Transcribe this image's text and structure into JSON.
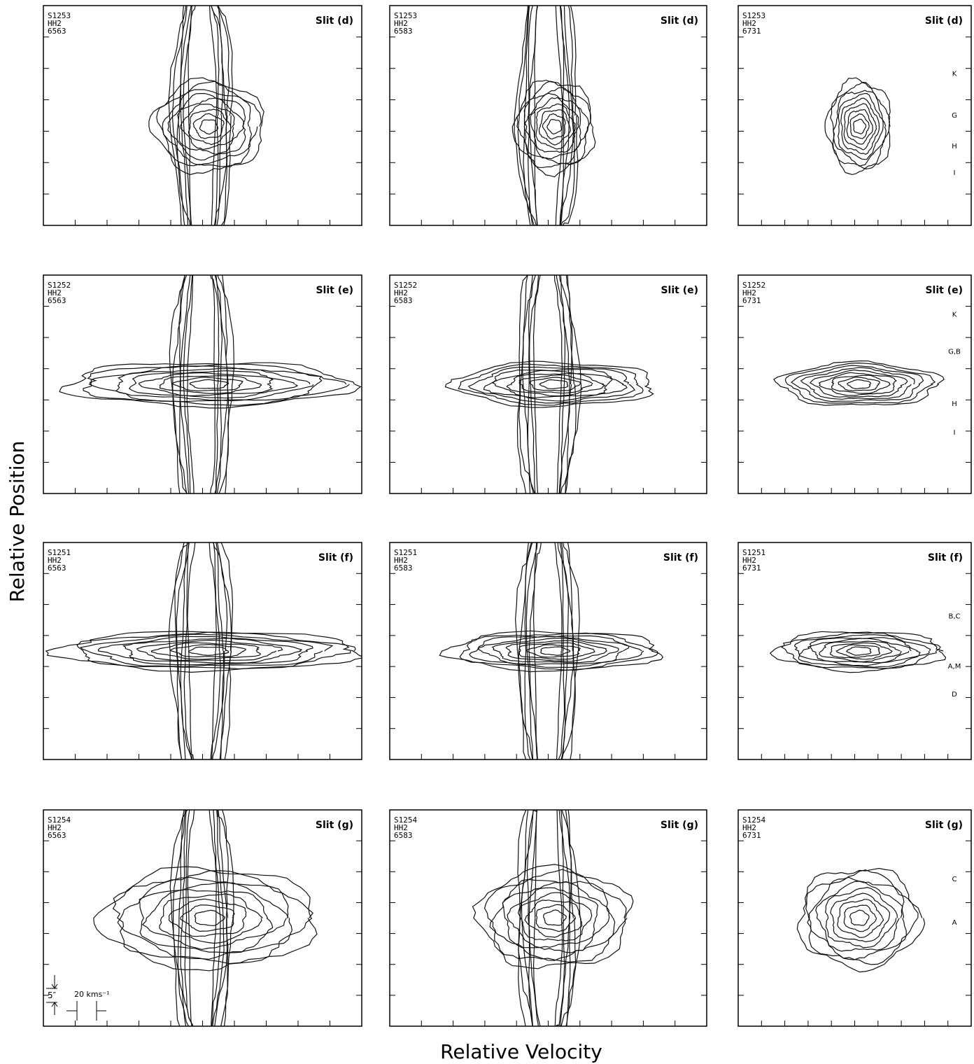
{
  "figure": {
    "y_label": "Relative Position",
    "x_label": "Relative Velocity",
    "scale_bar": {
      "position": "5″",
      "velocity": "20 kms⁻¹"
    },
    "panels": [
      {
        "lines": [
          "S1253",
          "HH2",
          "6563"
        ],
        "slit": "Slit (d)",
        "knots": []
      },
      {
        "lines": [
          "S1253",
          "HH2",
          "6583"
        ],
        "slit": "Slit (d)",
        "knots": []
      },
      {
        "lines": [
          "S1253",
          "HH2",
          "6731"
        ],
        "slit": "Slit (d)",
        "knots": [
          "K",
          "G",
          "H",
          "I"
        ]
      },
      {
        "lines": [
          "S1252",
          "HH2",
          "6563"
        ],
        "slit": "Slit (e)",
        "knots": []
      },
      {
        "lines": [
          "S1252",
          "HH2",
          "6583"
        ],
        "slit": "Slit (e)",
        "knots": []
      },
      {
        "lines": [
          "S1252",
          "HH2",
          "6731"
        ],
        "slit": "Slit (e)",
        "knots": [
          "K",
          "G,B",
          "H",
          "I"
        ]
      },
      {
        "lines": [
          "S1251",
          "HH2",
          "6563"
        ],
        "slit": "Slit (f)",
        "knots": []
      },
      {
        "lines": [
          "S1251",
          "HH2",
          "6583"
        ],
        "slit": "Slit (f)",
        "knots": []
      },
      {
        "lines": [
          "S1251",
          "HH2",
          "6731"
        ],
        "slit": "Slit (f)",
        "knots": [
          "B,C",
          "A,M",
          "D"
        ]
      },
      {
        "lines": [
          "S1254",
          "HH2",
          "6563"
        ],
        "slit": "Slit (g)",
        "knots": []
      },
      {
        "lines": [
          "S1254",
          "HH2",
          "6583"
        ],
        "slit": "Slit (g)",
        "knots": []
      },
      {
        "lines": [
          "S1254",
          "HH2",
          "6731"
        ],
        "slit": "Slit (g)",
        "knots": [
          "C",
          "A"
        ]
      }
    ]
  }
}
